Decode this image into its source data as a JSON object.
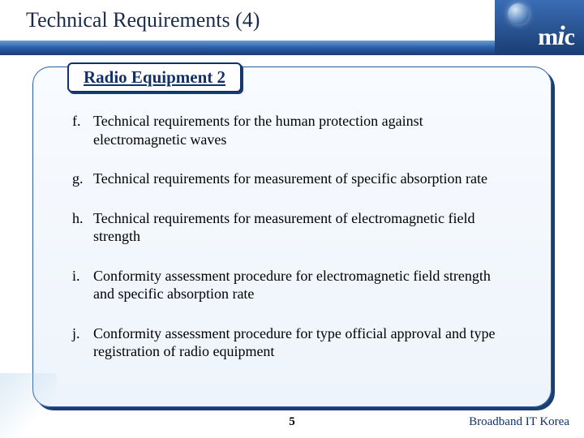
{
  "header": {
    "title": "Technical Requirements (4)",
    "title_color": "#1a2b4a",
    "title_fontsize": 26,
    "bar_gradient_top": "#6a9bd8",
    "bar_gradient_mid": "#2a5ca8",
    "bar_gradient_bottom": "#1a3d72"
  },
  "logo": {
    "text_m": "m",
    "text_i": "i",
    "text_c": "c",
    "globe_highlight": "#d8e8f8",
    "globe_mid": "#5a88c0",
    "globe_dark": "#1a3d72",
    "bg_top": "#3a6db5",
    "bg_bottom": "#1a3d72",
    "text_color": "#ffffff"
  },
  "content": {
    "box_bg_top": "#f8fbff",
    "box_bg_bottom": "#eef4fb",
    "box_border": "#2a5ca8",
    "box_shadow": "#1a3d72",
    "border_radius": 22
  },
  "section": {
    "label": "Radio Equipment 2",
    "label_color": "#12306a",
    "label_fontsize": 21,
    "tab_bg": "#ffffff",
    "tab_border": "#12306a"
  },
  "items": [
    {
      "marker": "f.",
      "text": "Technical requirements for the human protection against electromagnetic waves"
    },
    {
      "marker": "g.",
      "text": "Technical requirements for measurement of specific absorption rate"
    },
    {
      "marker": "h.",
      "text": "Technical requirements for measurement of electromagnetic field strength"
    },
    {
      "marker": "i.",
      "text": "Conformity assessment procedure for electromagnetic field strength and specific absorption rate"
    },
    {
      "marker": "j.",
      "text": "Conformity assessment procedure for type official approval and type registration of radio equipment"
    }
  ],
  "list_style": {
    "fontsize": 18,
    "text_color": "#000000",
    "item_spacing": 26
  },
  "footer": {
    "page_number": "5",
    "brand": "Broadband IT Korea",
    "brand_color": "#12306a"
  }
}
